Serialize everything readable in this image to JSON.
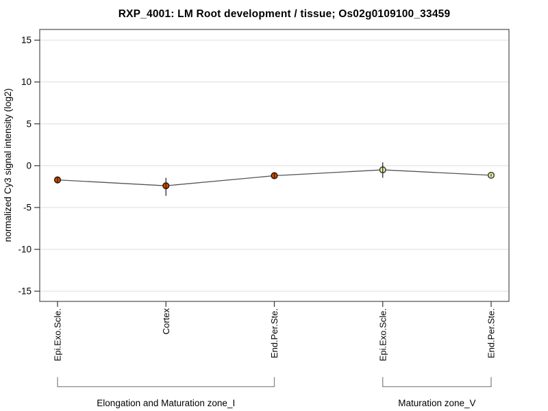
{
  "chart_data": {
    "type": "line",
    "title": "RXP_4001: LM Root development / tissue; Os02g0109100_33459",
    "ylabel": "normalized Cy3 signal intensity (log2)",
    "xlabel": "",
    "ylim": [
      -16.3,
      16.3
    ],
    "yticks": [
      15,
      10,
      5,
      0,
      -5,
      -10,
      -15
    ],
    "grid": "horizontal-only",
    "legend": "none",
    "categories": [
      "Epi.Exo.Scle.",
      "Cortex",
      "End.Per.Ste.",
      "Epi.Exo.Scle.",
      "End.Per.Ste."
    ],
    "series": [
      {
        "name": "normalized Cy3 signal intensity",
        "values": [
          -1.7,
          -2.4,
          -1.2,
          -0.5,
          -1.15
        ],
        "error_low": [
          -2.0,
          -3.6,
          -1.55,
          -1.45,
          -1.3
        ],
        "error_high": [
          -1.4,
          -1.45,
          -0.8,
          0.4,
          -1.0
        ]
      }
    ],
    "point_fill_colors": [
      "#d84a00",
      "#d84a00",
      "#d84a00",
      "#eeee99",
      "#eeee99"
    ],
    "point_outline_colors": [
      "#331a00",
      "#331a00",
      "#331a00",
      "#444444",
      "#444444"
    ],
    "line_color": "#555555",
    "errorbar_color": "#1a1a1a",
    "grid_color": "#dedede",
    "frame_color": "#4d4d4d",
    "tick_color": "#333333",
    "bracket_color": "#888888",
    "groups": [
      {
        "label": "Elongation and Maturation zone_I",
        "start": 0,
        "end": 2
      },
      {
        "label": "Maturation zone_V",
        "start": 3,
        "end": 4
      }
    ]
  }
}
